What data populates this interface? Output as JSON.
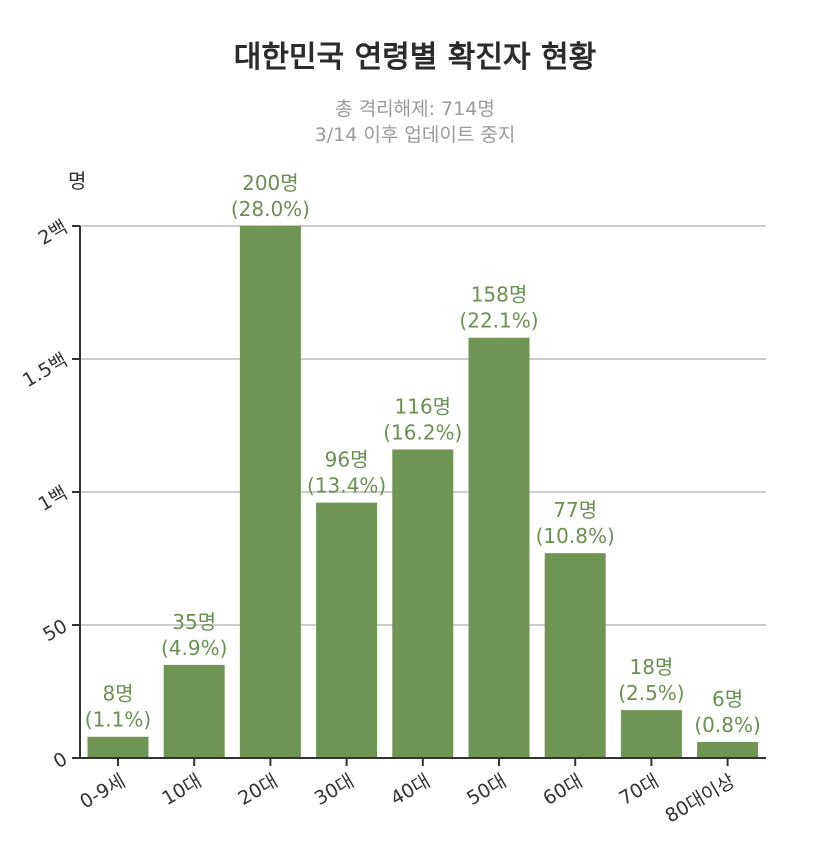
{
  "chart_data": {
    "type": "bar",
    "title": "대한민국 연령별 확진자 현황",
    "subtitle_lines": [
      "총 격리해제: 714명",
      "3/14 이후 업데이트 중지"
    ],
    "ylabel": "명",
    "ylim": [
      0,
      200
    ],
    "yticks": [
      {
        "value": 0,
        "label": "0"
      },
      {
        "value": 50,
        "label": "50"
      },
      {
        "value": 100,
        "label": "1백"
      },
      {
        "value": 150,
        "label": "1.5백"
      },
      {
        "value": 200,
        "label": "2백"
      }
    ],
    "categories": [
      "0-9세",
      "10대",
      "20대",
      "30대",
      "40대",
      "50대",
      "60대",
      "70대",
      "80대이상"
    ],
    "values": [
      8,
      35,
      200,
      96,
      116,
      158,
      77,
      18,
      6
    ],
    "value_labels": [
      "8명",
      "35명",
      "200명",
      "96명",
      "116명",
      "158명",
      "77명",
      "18명",
      "6명"
    ],
    "percent_labels": [
      "(1.1%)",
      "(4.9%)",
      "(28.0%)",
      "(13.4%)",
      "(16.2%)",
      "(22.1%)",
      "(10.8%)",
      "(2.5%)",
      "(0.8%)"
    ],
    "grid": true,
    "bar_color": "#6f9555",
    "label_color": "#6a9150",
    "grid_color": "#cccccc"
  }
}
